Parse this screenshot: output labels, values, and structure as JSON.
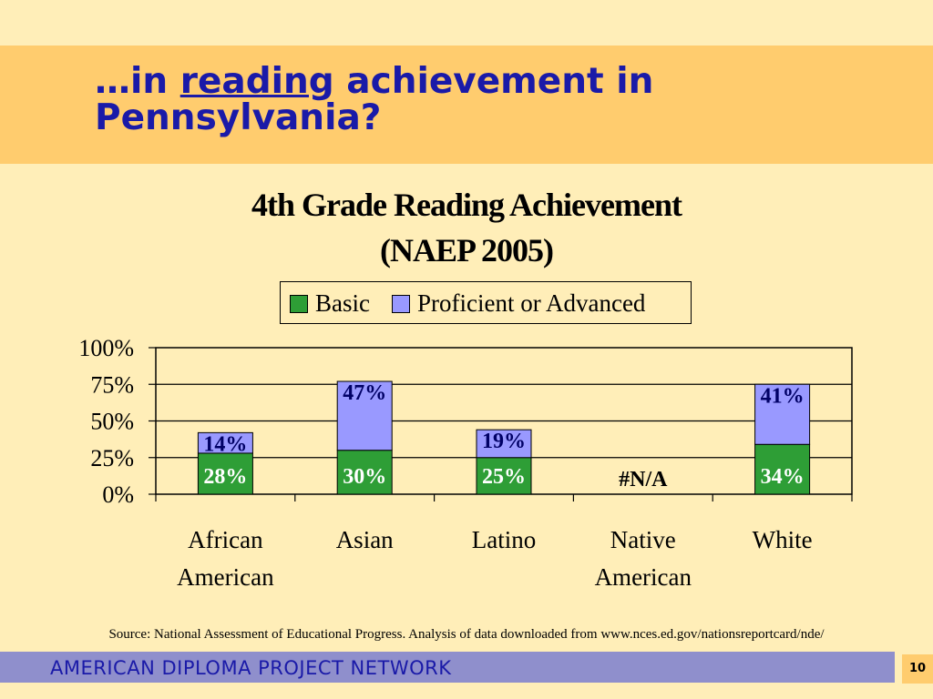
{
  "slide": {
    "title_part1": "…in ",
    "title_emphasis": "reading",
    "title_part2": " achievement in",
    "title_line2": "Pennsylvania?",
    "source": "Source: National Assessment of Educational Progress.  Analysis of data downloaded from www.nces.ed.gov/nationsreportcard/nde/",
    "footer": "AMERICAN DIPLOMA PROJECT NETWORK",
    "page_number": "10"
  },
  "chart_data": {
    "type": "bar",
    "stacked": true,
    "title": "4th Grade Reading Achievement",
    "subtitle": "(NAEP 2005)",
    "categories": [
      [
        "African",
        "American"
      ],
      [
        "Asian"
      ],
      [
        "Latino"
      ],
      [
        "Native",
        "American"
      ],
      [
        "White"
      ]
    ],
    "series": [
      {
        "name": "Basic",
        "color": "#2E9E36",
        "label_color": "#FFFFFF",
        "values": [
          28,
          30,
          25,
          null,
          34
        ],
        "labels": [
          "28%",
          "30%",
          "25%",
          "",
          "34%"
        ]
      },
      {
        "name": "Proficient or Advanced",
        "color": "#9999FF",
        "label_color": "#000066",
        "values": [
          14,
          47,
          19,
          null,
          41
        ],
        "labels": [
          "14%",
          "47%",
          "19%",
          "",
          "41%"
        ]
      }
    ],
    "na_label": "#N/A",
    "na_index": 3,
    "yticks": [
      "0%",
      "25%",
      "50%",
      "75%",
      "100%"
    ],
    "ylim": [
      0,
      100
    ],
    "legend_position": "top",
    "grid": true
  }
}
